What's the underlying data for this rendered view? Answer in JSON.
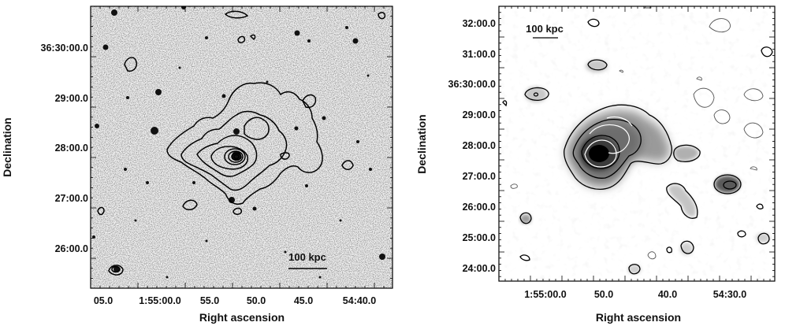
{
  "left_panel": {
    "x_title": "Right ascension",
    "y_title": "Declination",
    "x_ticks": [
      "05.0",
      "1:55:00.0",
      "55.0",
      "50.0",
      "45.0",
      "54:40.0"
    ],
    "y_ticks": [
      "36:30:00.0",
      "29:00.0",
      "28:00.0",
      "27:00.0",
      "26:00.0"
    ],
    "scale_bar": "100 kpc"
  },
  "right_panel": {
    "x_title": "Right ascension",
    "y_title": "Declination",
    "x_ticks": [
      "1:55:00.0",
      "50.0",
      "40.0",
      "54:30.0"
    ],
    "y_ticks": [
      "32:00.0",
      "31:00.0",
      "36:30:00.0",
      "29:00.0",
      "28:00.0",
      "27:00.0",
      "26:00.0",
      "25:00.0",
      "24:00.0"
    ],
    "scale_bar": "100 kpc"
  }
}
